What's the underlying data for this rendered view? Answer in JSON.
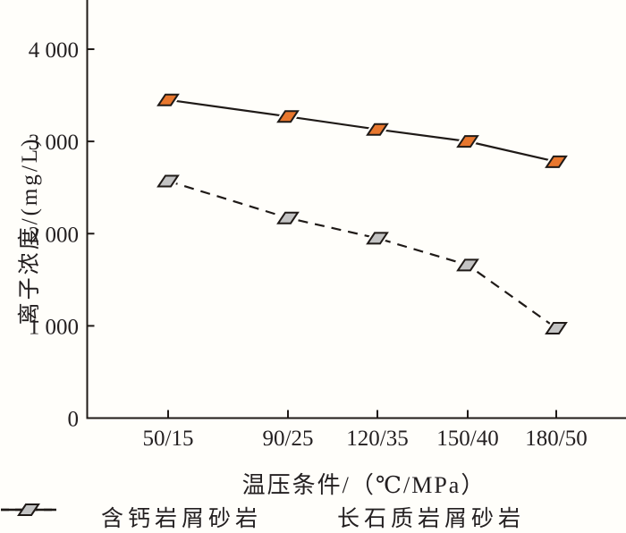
{
  "chart_data": {
    "type": "line",
    "title": "",
    "categories": [
      "50/15",
      "90/25",
      "120/35",
      "150/40",
      "180/50"
    ],
    "series": [
      {
        "name": "含钙岩屑砂岩",
        "values": [
          3450,
          3270,
          3130,
          3000,
          2780
        ],
        "line_style": "solid",
        "marker": "parallelogram",
        "marker_fill": "#e8772e"
      },
      {
        "name": "长石质岩屑砂岩",
        "values": [
          2570,
          2170,
          1950,
          1660,
          975
        ],
        "line_style": "dashed",
        "marker": "parallelogram",
        "marker_fill": "#c3c3c3"
      }
    ],
    "xlabel": "温压条件/（℃/MPa）",
    "ylabel": "离子浓度/(mg/L)",
    "y_ticks": [
      {
        "value": 0,
        "label": "0"
      },
      {
        "value": 1000,
        "label": "1 000"
      },
      {
        "value": 2000,
        "label": "2 000"
      },
      {
        "value": 3000,
        "label": "3 000"
      },
      {
        "value": 4000,
        "label": "4 000"
      }
    ],
    "ylim": [
      0,
      4400
    ],
    "grid": false,
    "legend_position": "bottom",
    "axis_color": "#1f1a17",
    "text_color": "#231f20"
  }
}
